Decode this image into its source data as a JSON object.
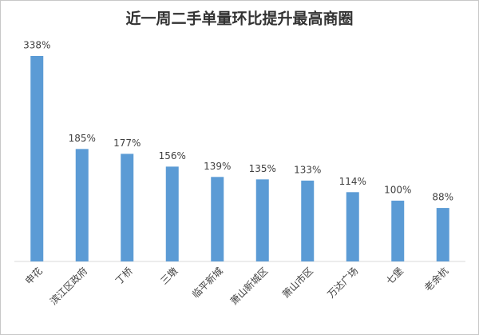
{
  "chart_data": {
    "type": "bar",
    "title": "近一周二手单量环比提升最高商圈",
    "categories": [
      "申花",
      "滨江区政府",
      "丁桥",
      "三墩",
      "临平新城",
      "萧山新城区",
      "萧山市区",
      "万达广场",
      "七堡",
      "老余杭"
    ],
    "values": [
      338,
      185,
      177,
      156,
      139,
      135,
      133,
      114,
      100,
      88
    ],
    "value_labels": [
      "338%",
      "185%",
      "177%",
      "156%",
      "139%",
      "135%",
      "133%",
      "114%",
      "100%",
      "88%"
    ],
    "color": "#5b9bd5"
  }
}
